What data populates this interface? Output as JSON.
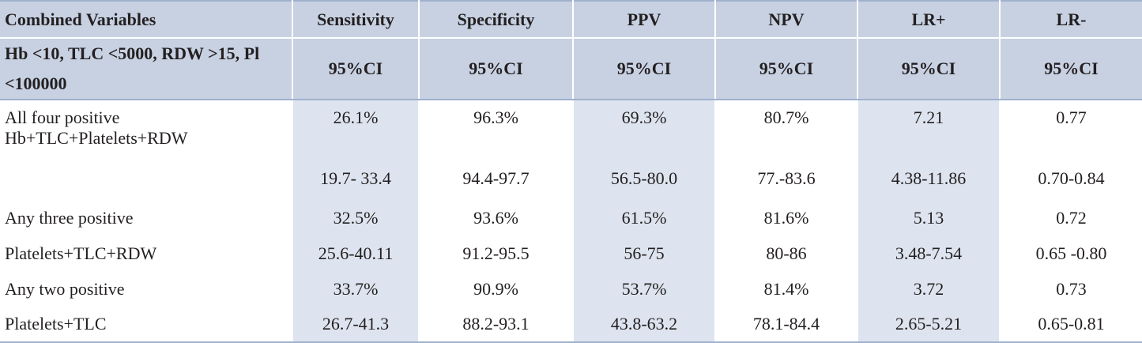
{
  "table": {
    "header_row1": [
      "Combined Variables",
      "Sensitivity",
      "Specificity",
      "PPV",
      "NPV",
      "LR+",
      "LR-"
    ],
    "header_row2": [
      "Hb <10, TLC <5000, RDW >15, Pl <100000",
      "95%CI",
      "95%CI",
      "95%CI",
      "95%CI",
      "95%CI",
      "95%CI"
    ],
    "rows": [
      [
        "All four positive",
        "26.1%",
        "96.3%",
        "69.3%",
        "80.7%",
        "7.21",
        "0.77"
      ],
      [
        "Hb+TLC+Platelets+RDW",
        "",
        "",
        "",
        "",
        "",
        ""
      ],
      [
        "",
        "19.7- 33.4",
        "94.4-97.7",
        "56.5-80.0",
        "77.-83.6",
        "4.38-11.86",
        "0.70-0.84"
      ],
      [
        "Any three positive",
        "32.5%",
        "93.6%",
        "61.5%",
        "81.6%",
        "5.13",
        "0.72"
      ],
      [
        "Platelets+TLC+RDW",
        "25.6-40.11",
        "91.2-95.5",
        "56-75",
        "80-86",
        "3.48-7.54",
        "0.65 -0.80"
      ],
      [
        "Any two positive",
        "33.7%",
        "90.9%",
        "53.7%",
        "81.4%",
        "3.72",
        "0.73"
      ],
      [
        "Platelets+TLC",
        "26.7-41.3",
        "88.2-93.1",
        "43.8-63.2",
        "78.1-84.4",
        "2.65-5.21",
        "0.65-0.81"
      ]
    ]
  },
  "colors": {
    "header_bg": "#c7d1e2",
    "shade_bg": "#dde4ef",
    "rule": "#9fb1cd"
  }
}
